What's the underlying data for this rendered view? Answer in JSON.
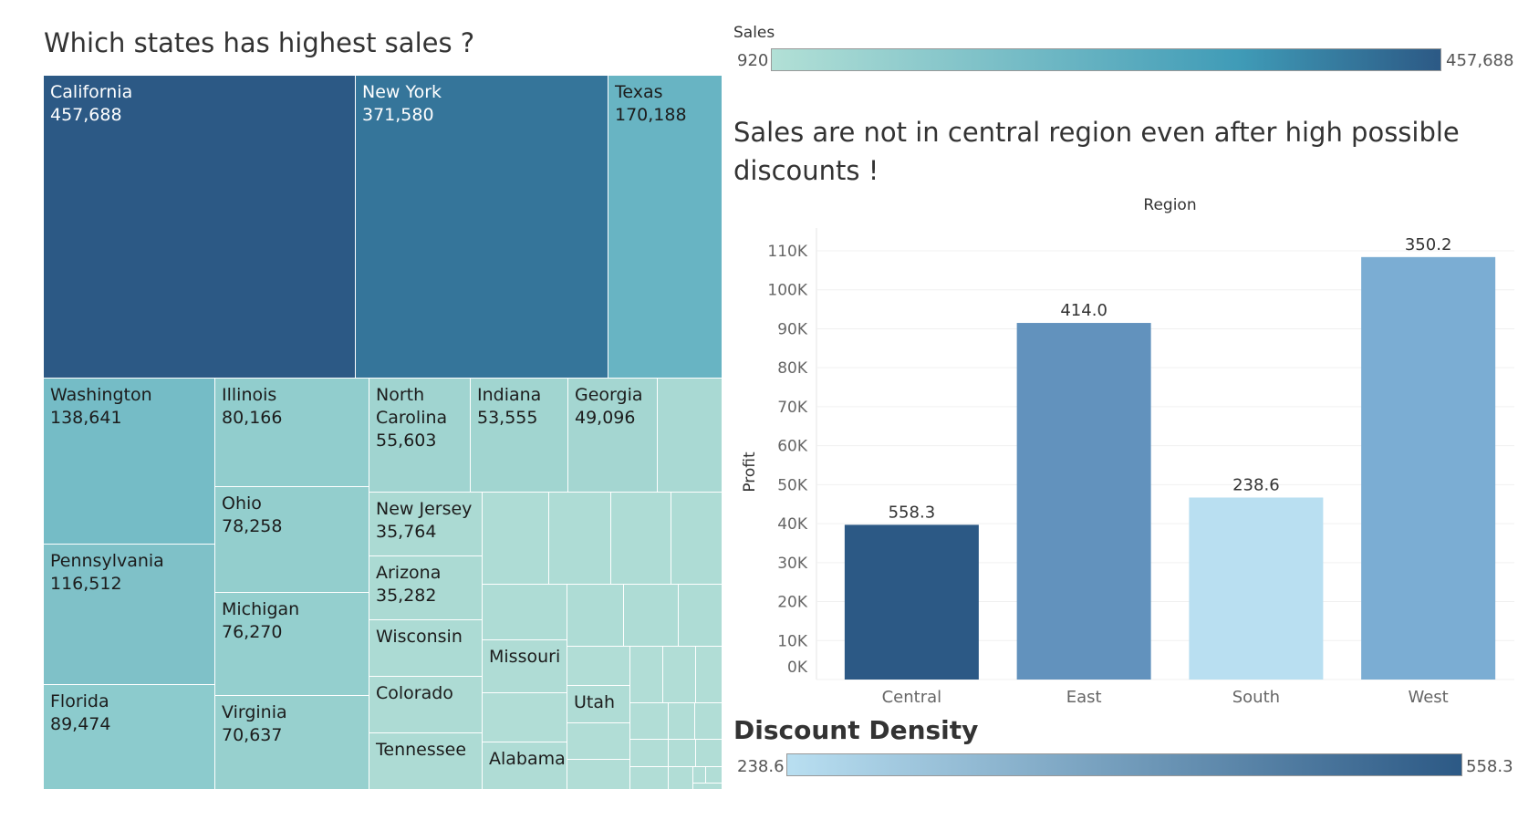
{
  "treemap": {
    "title": "Which states has highest sales ?",
    "color_min": "#b2e0d6",
    "color_max": "#2c5985",
    "cells": [
      {
        "label": "California",
        "value": "457,688",
        "color": "#2c5985",
        "text_color": "#ffffff"
      },
      {
        "label": "New York",
        "value": "371,580",
        "color": "#35759a",
        "text_color": "#ffffff"
      },
      {
        "label": "Texas",
        "value": "170,188",
        "color": "#68b4c3",
        "text_color": "#1c1c1c"
      },
      {
        "label": "Washington",
        "value": "138,641",
        "color": "#75bcc6",
        "text_color": "#1c1c1c"
      },
      {
        "label": "Pennsylvania",
        "value": "116,512",
        "color": "#7fc1c8",
        "text_color": "#1c1c1c"
      },
      {
        "label": "Florida",
        "value": "89,474",
        "color": "#8ccbcd",
        "text_color": "#1c1c1c"
      },
      {
        "label": "Illinois",
        "value": "80,166",
        "color": "#91cdcd",
        "text_color": "#1c1c1c"
      },
      {
        "label": "Ohio",
        "value": "78,258",
        "color": "#93cecd",
        "text_color": "#1c1c1c"
      },
      {
        "label": "Michigan",
        "value": "76,270",
        "color": "#94cfce",
        "text_color": "#1c1c1c"
      },
      {
        "label": "Virginia",
        "value": "70,637",
        "color": "#97d0ce",
        "text_color": "#1c1c1c"
      },
      {
        "label": "North Carolina",
        "value": "55,603",
        "color": "#a0d4d0",
        "text_color": "#1c1c1c"
      },
      {
        "label": "Indiana",
        "value": "53,555",
        "color": "#a1d5d0",
        "text_color": "#1c1c1c"
      },
      {
        "label": "Georgia",
        "value": "49,096",
        "color": "#a4d6d1",
        "text_color": "#1c1c1c"
      },
      {
        "label": "",
        "value": "",
        "color": "#a9d9d3",
        "text_color": "#1c1c1c"
      },
      {
        "label": "New Jersey",
        "value": "35,764",
        "color": "#abdad3",
        "text_color": "#1c1c1c"
      },
      {
        "label": "Arizona",
        "value": "35,282",
        "color": "#abdad3",
        "text_color": "#1c1c1c"
      },
      {
        "label": "Wisconsin",
        "value": "",
        "color": "#acdbd4",
        "text_color": "#1c1c1c"
      },
      {
        "label": "Colorado",
        "value": "",
        "color": "#addbd4",
        "text_color": "#1c1c1c"
      },
      {
        "label": "Tennessee",
        "value": "",
        "color": "#addbd4",
        "text_color": "#1c1c1c"
      },
      {
        "label": "Missouri",
        "value": "",
        "color": "#afdcd5",
        "text_color": "#1c1c1c"
      },
      {
        "label": "Alabama",
        "value": "",
        "color": "#afdcd5",
        "text_color": "#1c1c1c"
      },
      {
        "label": "Utah",
        "value": "",
        "color": "#afdcd5",
        "text_color": "#1c1c1c"
      }
    ]
  },
  "sales_legend": {
    "label": "Sales",
    "min": "920",
    "max": "457,688",
    "color_from": "#b2e0d6",
    "color_mid": "#3f9bb7",
    "color_to": "#2c5985"
  },
  "bar_chart": {
    "title": "Sales are not in central region even after high possible discounts !"
  },
  "chart_data": {
    "type": "bar",
    "header": "Region",
    "ylabel": "Profit",
    "categories": [
      "Central",
      "East",
      "South",
      "West"
    ],
    "values": [
      39700,
      91500,
      46700,
      108400
    ],
    "data_labels": [
      "558.3",
      "414.0",
      "238.6",
      "350.2"
    ],
    "colors": [
      "#2c5985",
      "#6292bd",
      "#b9dff1",
      "#7badd3"
    ],
    "yticks": [
      "0K",
      "10K",
      "20K",
      "30K",
      "40K",
      "50K",
      "60K",
      "70K",
      "80K",
      "90K",
      "100K",
      "110K"
    ],
    "ylim": [
      0,
      110000
    ],
    "grid": true
  },
  "discount_legend": {
    "label": "Discount Density",
    "min": "238.6",
    "max": "558.3",
    "color_from": "#b9dff1",
    "color_to": "#2c5985"
  }
}
